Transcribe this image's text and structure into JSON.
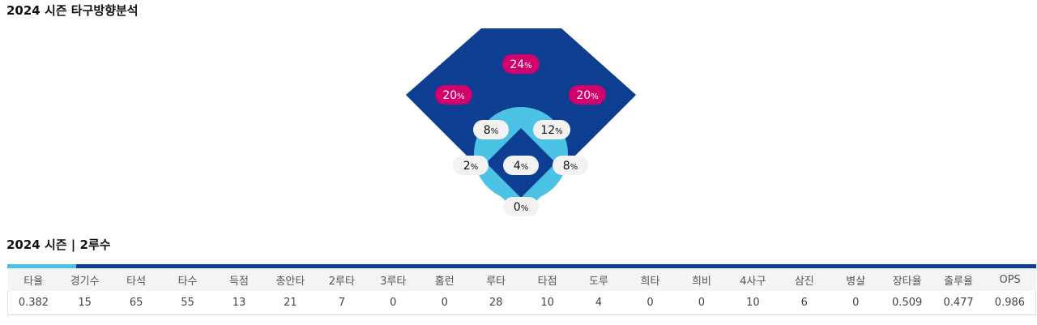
{
  "section1": {
    "title": "2024 시즌 타구방향분석"
  },
  "field": {
    "colors": {
      "outfield": "#0e3e91",
      "infield_arc": "#4cc3e4",
      "diamond": "#0e3e91",
      "badge_pink": "#d1006c",
      "badge_white": "#f2f2f2"
    },
    "zones": [
      {
        "id": "cf",
        "value": "24",
        "unit": "%",
        "style": "pink"
      },
      {
        "id": "lf",
        "value": "20",
        "unit": "%",
        "style": "pink"
      },
      {
        "id": "rf",
        "value": "20",
        "unit": "%",
        "style": "pink"
      },
      {
        "id": "ss",
        "value": "8",
        "unit": "%",
        "style": "white"
      },
      {
        "id": "2b",
        "value": "12",
        "unit": "%",
        "style": "white"
      },
      {
        "id": "3b",
        "value": "2",
        "unit": "%",
        "style": "white"
      },
      {
        "id": "mound",
        "value": "4",
        "unit": "%",
        "style": "white"
      },
      {
        "id": "1b",
        "value": "8",
        "unit": "%",
        "style": "white"
      },
      {
        "id": "c",
        "value": "0",
        "unit": "%",
        "style": "white"
      }
    ]
  },
  "section2": {
    "title": "2024 시즌 | 2루수"
  },
  "stats_table": {
    "headers": [
      "타율",
      "경기수",
      "타석",
      "타수",
      "득점",
      "총안타",
      "2루타",
      "3루타",
      "홈런",
      "루타",
      "타점",
      "도루",
      "희타",
      "희비",
      "4사구",
      "삼진",
      "병살",
      "장타율",
      "출루율",
      "OPS"
    ],
    "values": [
      "0.382",
      "15",
      "65",
      "55",
      "13",
      "21",
      "7",
      "0",
      "0",
      "28",
      "10",
      "4",
      "0",
      "0",
      "10",
      "6",
      "0",
      "0.509",
      "0.477",
      "0.986"
    ]
  }
}
